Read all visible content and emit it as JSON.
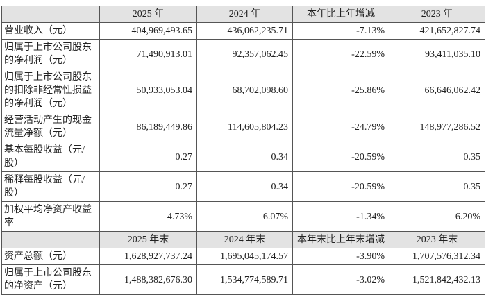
{
  "table": {
    "header": [
      "2025 年",
      "2024 年",
      "本年比上年增减",
      "2023 年"
    ],
    "rows": [
      [
        "营业收入（元）",
        "404,969,493.65",
        "436,062,235.71",
        "-7.13%",
        "421,652,827.74"
      ],
      [
        "归属于上市公司股东的净利润（元）",
        "71,490,913.01",
        "92,357,062.45",
        "-22.59%",
        "93,411,035.10"
      ],
      [
        "归属于上市公司股东的扣除非经常性损益的净利润（元）",
        "50,933,053.04",
        "68,702,098.60",
        "-25.86%",
        "66,646,062.42"
      ],
      [
        "经营活动产生的现金流量净额（元）",
        "86,189,449.86",
        "114,605,804.23",
        "-24.79%",
        "148,977,286.52"
      ],
      [
        "基本每股收益（元/股）",
        "0.27",
        "0.34",
        "-20.59%",
        "0.35"
      ],
      [
        "稀释每股收益（元/股）",
        "0.27",
        "0.34",
        "-20.59%",
        "0.35"
      ],
      [
        "加权平均净资产收益率",
        "4.73%",
        "6.07%",
        "-1.34%",
        "6.20%"
      ]
    ],
    "header2": [
      "2025 年末",
      "2024 年末",
      "本年末比上年末增减",
      "2023 年末"
    ],
    "rows2": [
      [
        "资产总额（元）",
        "1,628,927,737.24",
        "1,695,045,174.57",
        "-3.90%",
        "1,707,576,312.34"
      ],
      [
        "归属于上市公司股东的净资产（元）",
        "1,488,382,676.30",
        "1,534,774,589.71",
        "-3.02%",
        "1,521,842,432.13"
      ]
    ]
  }
}
